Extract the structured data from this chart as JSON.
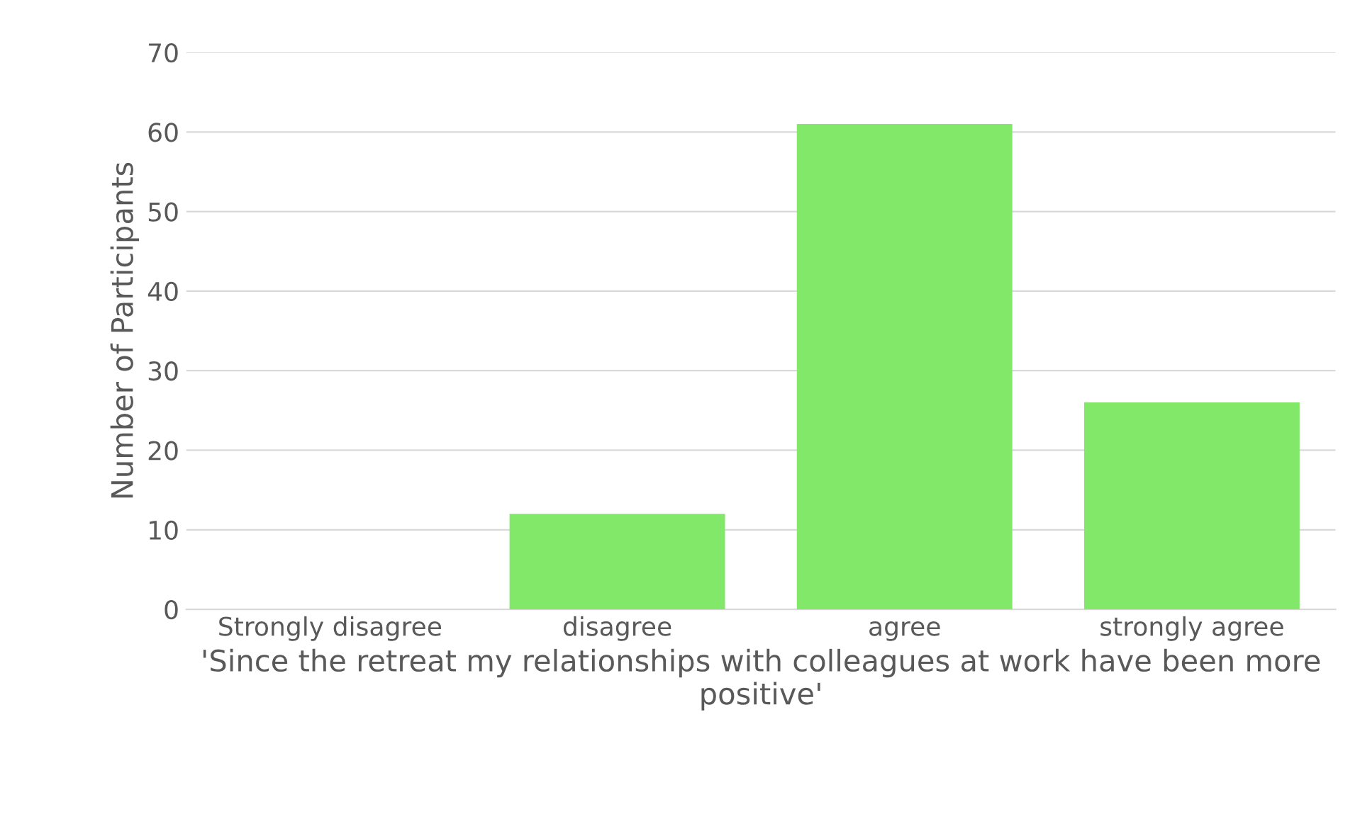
{
  "chart_data": {
    "type": "bar",
    "categories": [
      "Strongly disagree",
      "disagree",
      "agree",
      "strongly agree"
    ],
    "values": [
      0,
      12,
      61,
      26
    ],
    "color": "#82e86a",
    "xlabel": "'Since the retreat my relationships with colleagues at work have been more positive'",
    "ylabel": "Number of Participants",
    "ylim": [
      0,
      70
    ],
    "yticks": [
      0,
      10,
      20,
      30,
      40,
      50,
      60,
      70
    ],
    "grid": "y",
    "legend": false
  }
}
